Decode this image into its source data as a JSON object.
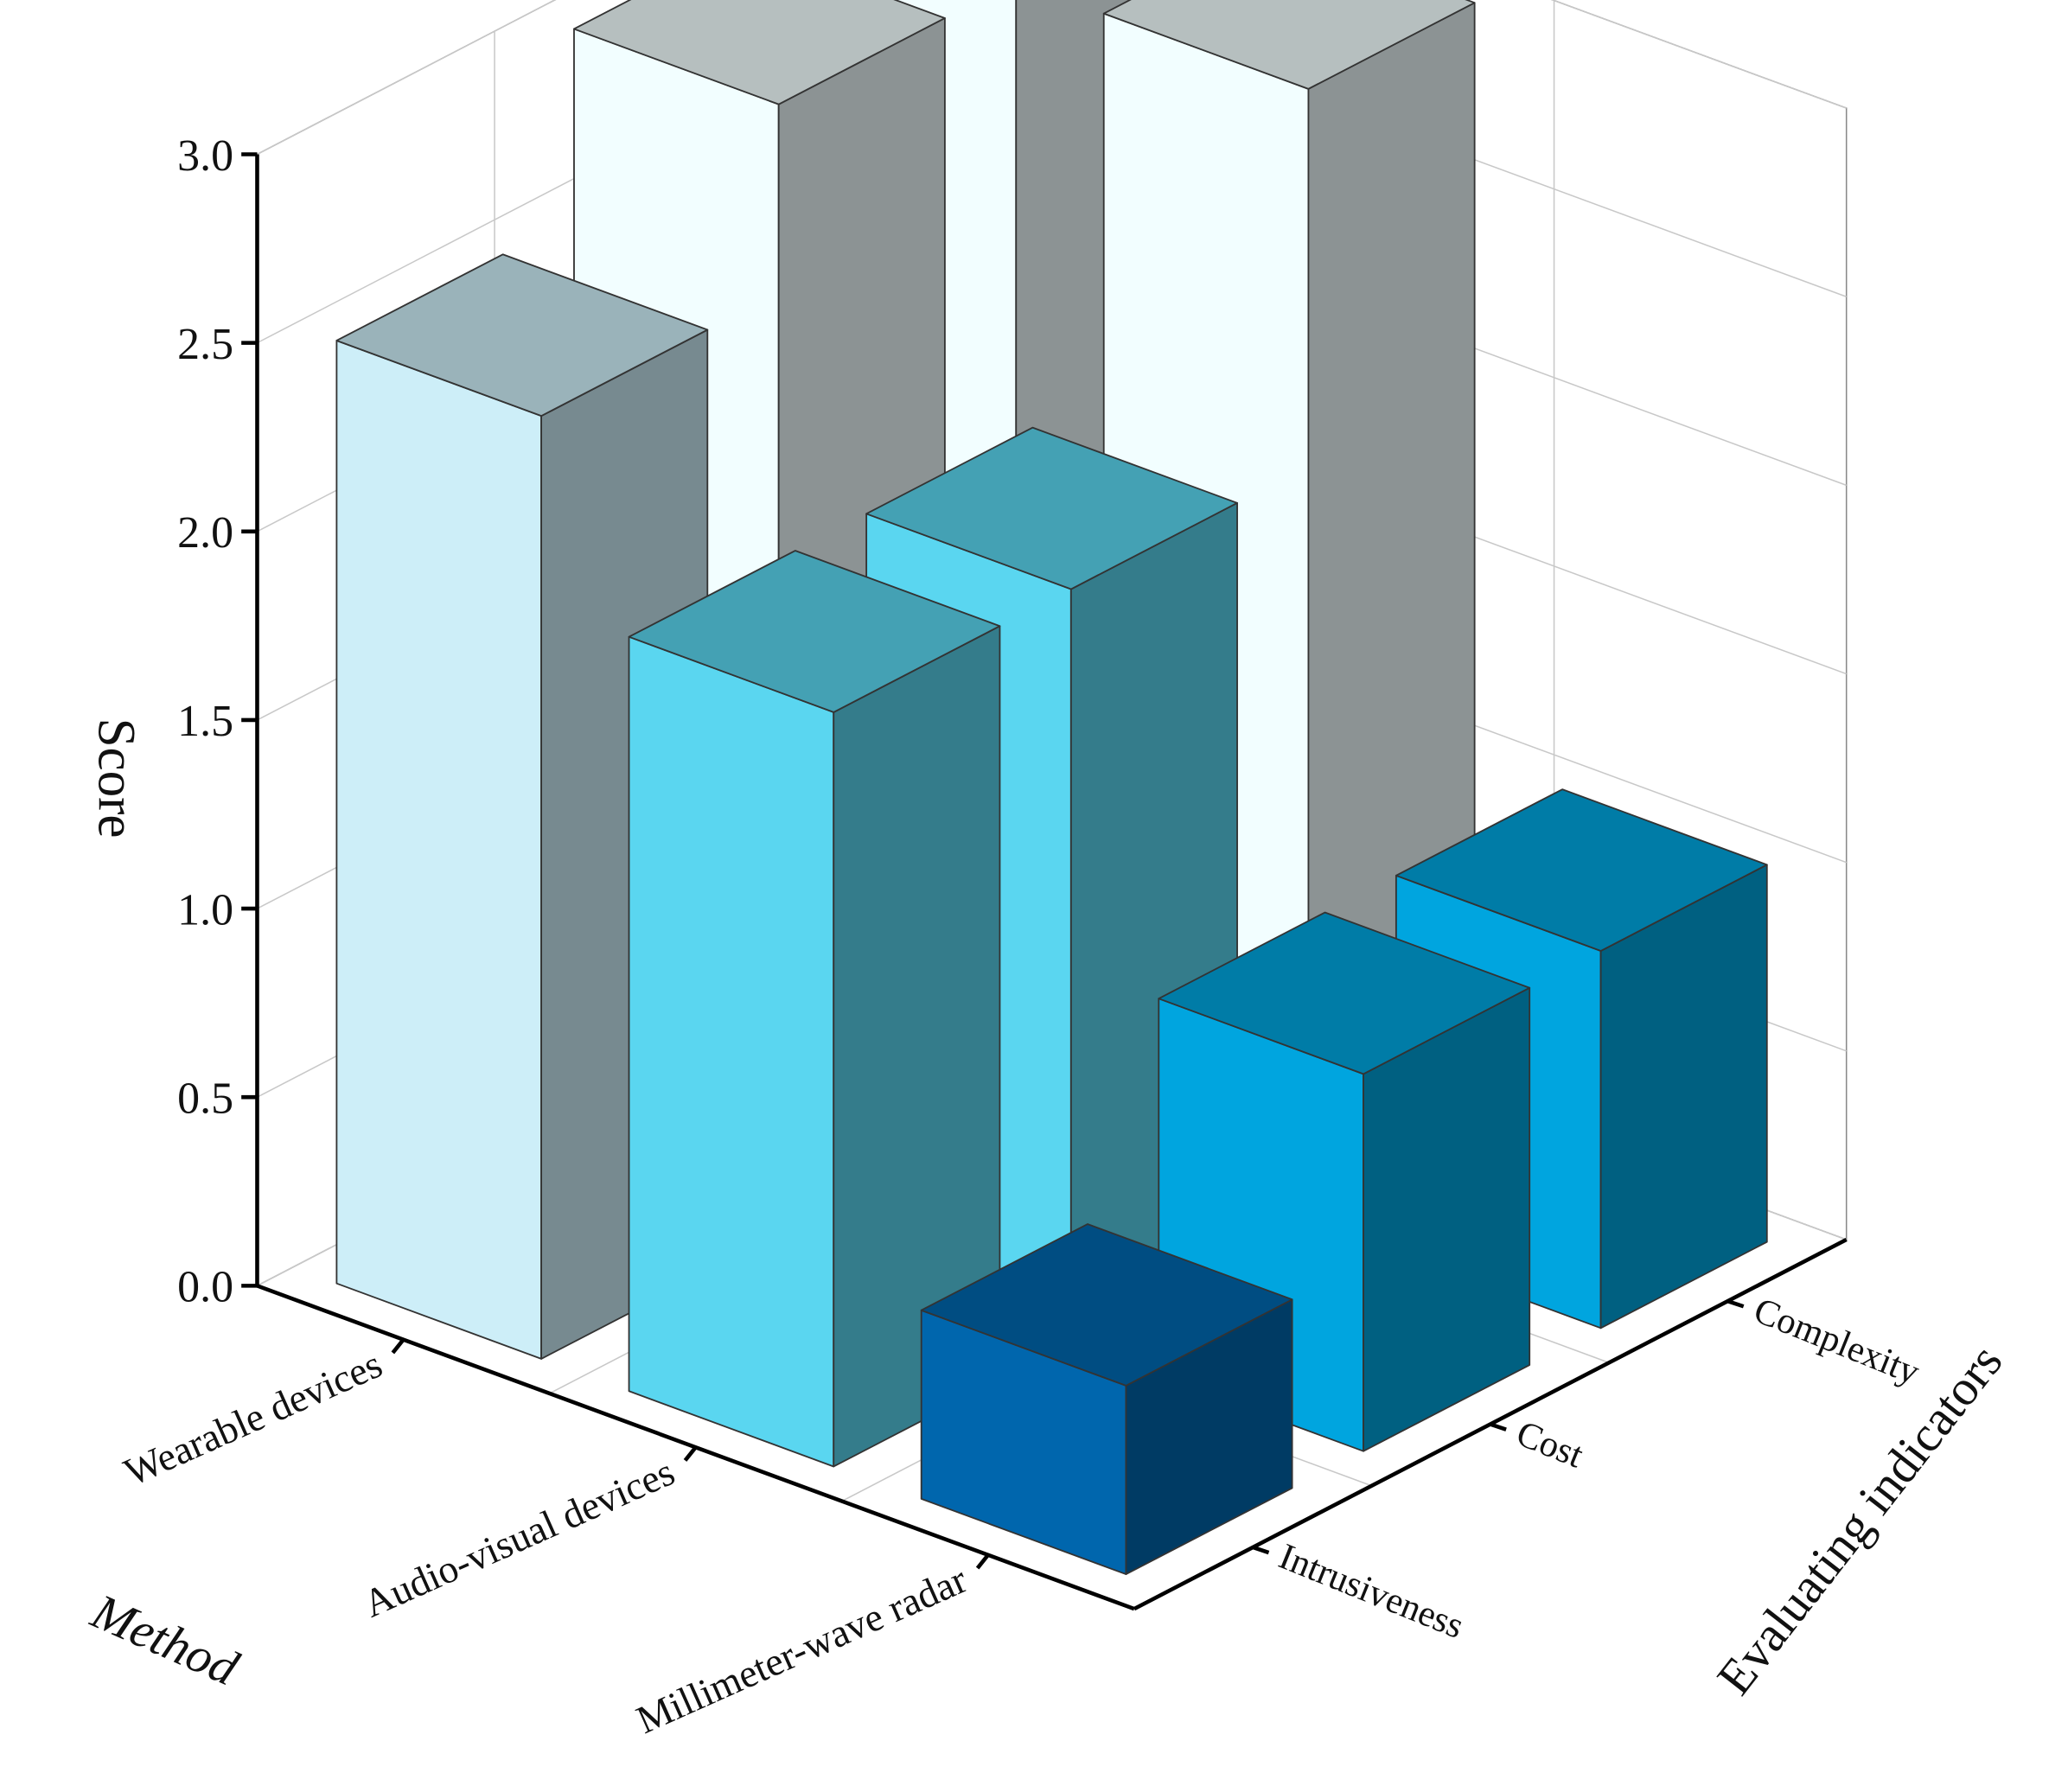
{
  "chart_data": {
    "type": "bar3d",
    "x_label": "Method",
    "y_label": "Evaluating indicators",
    "z_label": "Score",
    "categories": [
      "Wearable devices",
      "Audio-visual devices",
      "Millimeter-wave radar"
    ],
    "series": [
      {
        "name": "Intrusiveness",
        "values": [
          2.5,
          2,
          0.5
        ],
        "colors": [
          "#cdeef8",
          "#5ad6f0",
          "#0066ad"
        ]
      },
      {
        "name": "Cost",
        "values": [
          3,
          2,
          1
        ],
        "colors": [
          "#f2feff",
          "#5ad6f0",
          "#00a5df"
        ]
      },
      {
        "name": "Complexity",
        "values": [
          3,
          3,
          1
        ],
        "colors": [
          "#f2feff",
          "#f2feff",
          "#00a5df"
        ]
      }
    ],
    "zlim": [
      0,
      3
    ],
    "zticks": [
      {
        "value": 0,
        "label": "0.0"
      },
      {
        "value": 0.5,
        "label": "0.5"
      },
      {
        "value": 1,
        "label": "1.0"
      },
      {
        "value": 1.5,
        "label": "1.5"
      },
      {
        "value": 2,
        "label": "2.0"
      },
      {
        "value": 2.5,
        "label": "2.5"
      },
      {
        "value": 3,
        "label": "3.0"
      }
    ],
    "grid": true
  }
}
